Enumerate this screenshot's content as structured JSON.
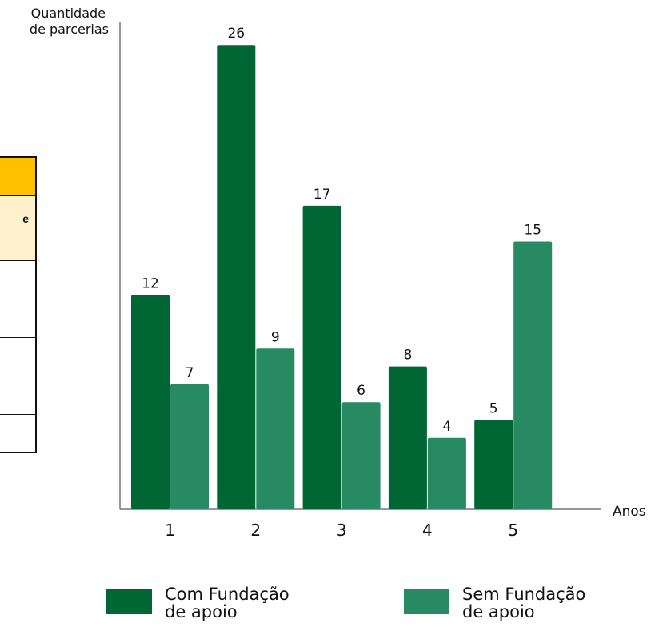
{
  "table_fragment": {
    "header_colors": [
      "#ffc000",
      "#fff1cc"
    ],
    "partial_text": "e",
    "rows": 5
  },
  "chart_data": {
    "type": "bar",
    "xlabel": "Anos",
    "ylabel": "Quantidade de parcerias",
    "ylabel_lines": [
      "Quantidade",
      "de parcerias"
    ],
    "categories": [
      "1",
      "2",
      "3",
      "4",
      "5"
    ],
    "ylim": [
      0,
      28
    ],
    "grid": false,
    "legend_placement": "bottom",
    "series": [
      {
        "name": "Com Fundação de apoio",
        "label_lines": [
          "Com Fundação",
          "de apoio"
        ],
        "color": "#006633",
        "values": [
          12,
          26,
          17,
          8,
          5
        ]
      },
      {
        "name": "Sem Fundação de apoio",
        "label_lines": [
          "Sem Fundação",
          "de apoio"
        ],
        "color": "#278a63",
        "values": [
          7,
          9,
          6,
          4,
          15
        ]
      }
    ]
  }
}
